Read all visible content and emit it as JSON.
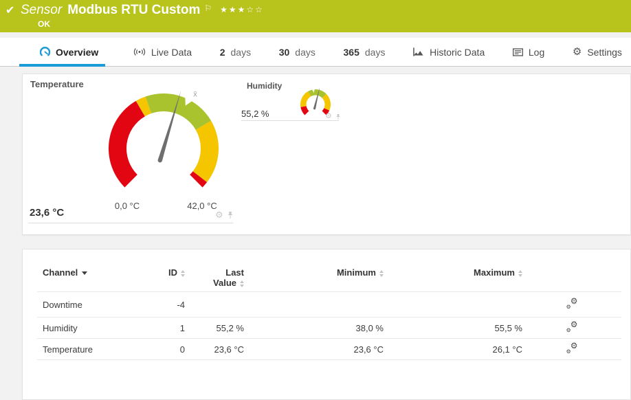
{
  "colors": {
    "header_bg": "#b8c31c",
    "accent_blue": "#1b9bd7",
    "gauge_red": "#e20613",
    "gauge_yellow": "#f5c500",
    "gauge_green": "#a9c32f"
  },
  "icons": {
    "check": "✔",
    "flag": "⚐",
    "stars": "★★★☆☆",
    "gear": "⚙"
  },
  "titlebar": {
    "kind": "Sensor",
    "name": "Modbus RTU Custom",
    "status": "OK"
  },
  "tabs": [
    {
      "label": "Overview",
      "icon": "gauge-icon",
      "active": true
    },
    {
      "label": "Live Data",
      "icon": "live-icon"
    },
    {
      "num": "2",
      "label": "days"
    },
    {
      "num": "30",
      "label": "days"
    },
    {
      "num": "365",
      "label": "days"
    },
    {
      "label": "Historic Data",
      "icon": "historic-chart-icon"
    },
    {
      "label": "Log",
      "icon": "log-icon"
    },
    {
      "label": "Settings",
      "icon": "gear-icon"
    }
  ],
  "gauges": {
    "temperature": {
      "title": "Temperature",
      "value_label": "23,6 °C",
      "scale_min_label": "0,0 °C",
      "scale_max_label": "42,0 °C",
      "avg_label": "x̄",
      "min": 0,
      "max": 42,
      "value": 23.6,
      "average": 25.2,
      "segments": [
        {
          "from": 0,
          "to": 16.3,
          "color": "#e20613"
        },
        {
          "from": 16.3,
          "to": 18,
          "color": "#f5c500"
        },
        {
          "from": 18,
          "to": 30.3,
          "color": "#a9c32f"
        },
        {
          "from": 30.3,
          "to": 40.9,
          "color": "#f5c500"
        },
        {
          "from": 40.9,
          "to": 42,
          "color": "#e20613"
        }
      ]
    },
    "humidity": {
      "title": "Humidity",
      "value_label": "55,2 %",
      "min": 0,
      "max": 100,
      "value": 55.2,
      "average": 47,
      "segments": [
        {
          "from": 0,
          "to": 13,
          "color": "#e20613"
        },
        {
          "from": 13,
          "to": 39,
          "color": "#f5c500"
        },
        {
          "from": 39,
          "to": 67,
          "color": "#a9c32f"
        },
        {
          "from": 67,
          "to": 92,
          "color": "#f5c500"
        },
        {
          "from": 92,
          "to": 100,
          "color": "#e20613"
        }
      ]
    }
  },
  "table": {
    "headers": {
      "channel": "Channel",
      "id": "ID",
      "last1": "Last",
      "last2": "Value",
      "min": "Minimum",
      "max": "Maximum"
    },
    "rows": [
      {
        "channel": "Downtime",
        "id": "-4",
        "last": "",
        "min": "",
        "max": ""
      },
      {
        "channel": "Humidity",
        "id": "1",
        "last": "55,2 %",
        "min": "38,0 %",
        "max": "55,5 %"
      },
      {
        "channel": "Temperature",
        "id": "0",
        "last": "23,6 °C",
        "min": "23,6 °C",
        "max": "26,1 °C"
      }
    ]
  }
}
